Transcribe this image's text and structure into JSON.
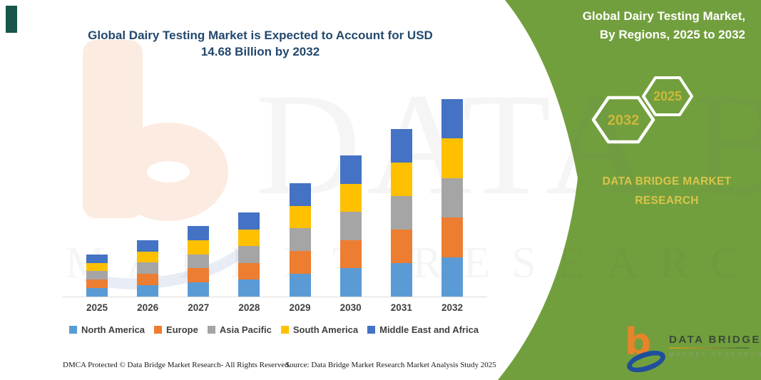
{
  "title": {
    "text": "Global Dairy Testing Market is Expected to Account for USD 14.68 Billion by 2032"
  },
  "chart_data": {
    "type": "bar",
    "stacked": true,
    "unit": "USD Billion",
    "title": "Global Dairy Testing Market is Expected to Account for USD 14.68 Billion by 2032",
    "categories": [
      "2025",
      "2026",
      "2027",
      "2028",
      "2029",
      "2030",
      "2031",
      "2032"
    ],
    "totals": [
      3.15,
      4.2,
      5.25,
      6.25,
      8.45,
      10.5,
      12.45,
      14.7
    ],
    "series": [
      {
        "name": "North America",
        "color": "#5B9BD5",
        "values": [
          0.63,
          0.84,
          1.05,
          1.25,
          1.69,
          2.1,
          2.49,
          2.94
        ]
      },
      {
        "name": "Europe",
        "color": "#ED7D31",
        "values": [
          0.63,
          0.84,
          1.05,
          1.25,
          1.69,
          2.1,
          2.49,
          2.94
        ]
      },
      {
        "name": "Asia Pacific",
        "color": "#A5A5A5",
        "values": [
          0.63,
          0.84,
          1.05,
          1.25,
          1.69,
          2.1,
          2.49,
          2.94
        ]
      },
      {
        "name": "South America",
        "color": "#FFC000",
        "values": [
          0.63,
          0.84,
          1.05,
          1.25,
          1.69,
          2.1,
          2.49,
          2.94
        ]
      },
      {
        "name": "Middle East and Africa",
        "color": "#4472C4",
        "values": [
          0.63,
          0.84,
          1.05,
          1.25,
          1.69,
          2.1,
          2.49,
          2.94
        ]
      }
    ],
    "xlabel": "",
    "ylabel": "",
    "ylim": [
      0,
      15
    ],
    "grid": false,
    "legend_position": "bottom",
    "axes_labels_visible": false
  },
  "side_panel": {
    "heading": "Global Dairy Testing Market, By Regions, 2025 to 2032",
    "panel_color": "#729F3D",
    "hexagon_badges": [
      {
        "label": "2032"
      },
      {
        "label": "2025"
      }
    ],
    "brand_text": "DATA BRIDGE MARKET RESEARCH",
    "gold_color": "#D8C54B"
  },
  "logo": {
    "name": "DATA BRIDGE",
    "sub": "MARKET RESEARCH"
  },
  "watermark": {
    "big_text": "DATA BRIDGE",
    "mid_text": "MARKET RESEARCH"
  },
  "footer": {
    "left": "DMCA Protected © Data Bridge Market Research-  All Rights Reserved.",
    "right": "Source: Data Bridge Market Research  Market Analysis Study 2025"
  }
}
